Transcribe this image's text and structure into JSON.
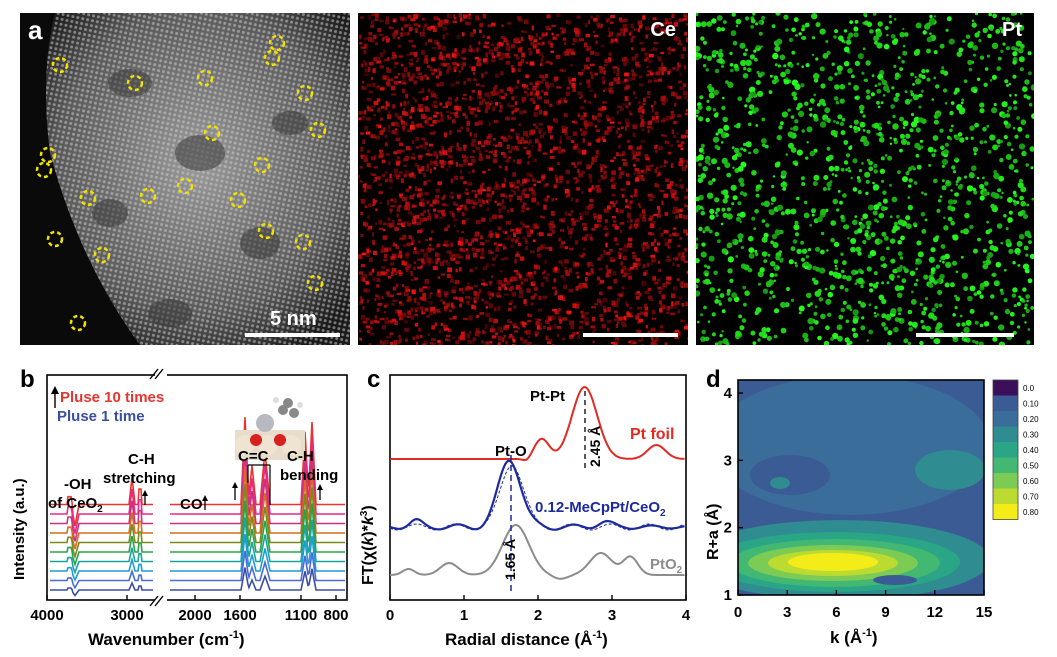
{
  "panel_a": {
    "letter": "a",
    "scale_label": "5 nm",
    "map_ce_label": "Ce",
    "map_pt_label": "Pt"
  },
  "panel_b": {
    "letter": "b",
    "legend": {
      "top": "Pluse 10 times",
      "bottom": "Pluse 1 time",
      "top_color": "#e8342d",
      "bottom_color": "#3a4ea1"
    },
    "ylabel": "Intensity (a.u.)",
    "xlabel": "Wavenumber (cm",
    "xlabel_sup": "-1",
    "xlabel_end": ")",
    "ticks": [
      "4000",
      "3000",
      "2000",
      "1600",
      "1100",
      "800"
    ],
    "annotations": {
      "oh_line1": "-OH",
      "oh_line2": "of CeO",
      "oh_sub": "2",
      "ch_stretch_line1": "C-H",
      "ch_stretch_line2": "stretching",
      "co": "CO",
      "cc": "C=C",
      "ch_bend_line1": "C-H",
      "ch_bend_line2": "bending"
    },
    "trace_colors": [
      "#e8342d",
      "#e62a8a",
      "#c8337f",
      "#d76b1f",
      "#7a8a1a",
      "#2aa24a",
      "#1ba39c",
      "#1e9bd7",
      "#4a6bd6",
      "#3a4ea1"
    ]
  },
  "panel_c": {
    "letter": "c",
    "ylabel_pre": "FT(χ(",
    "ylabel_k": "k",
    "ylabel_mid": ")*",
    "ylabel_k2": "k",
    "ylabel_sup": "3",
    "ylabel_end": ")",
    "xlabel": "Radial distance (Å",
    "xlabel_sup": "-1",
    "xlabel_end": ")",
    "x_ticks": [
      "0",
      "1",
      "2",
      "3",
      "4"
    ],
    "ptpt": "Pt-Pt",
    "pto": "Pt-O",
    "d245": "2.45 Å",
    "d165": "1.65 Å",
    "ptfoil": "Pt foil",
    "sample": "0.12-MeCpPt/CeO",
    "sample_sub": "2",
    "pto2": "PtO",
    "pto2_sub": "2",
    "colors": {
      "foil": "#e22a22",
      "sample": "#1d2a9e",
      "pto2": "#8c8c8c"
    }
  },
  "panel_d": {
    "letter": "d",
    "ylabel": "R+a (Å)",
    "xlabel": "k (Å",
    "xlabel_sup": "-1",
    "xlabel_end": ")",
    "x_ticks": [
      "0",
      "3",
      "6",
      "9",
      "12",
      "15"
    ],
    "y_ticks": [
      "1",
      "2",
      "3",
      "4"
    ],
    "colorbar": [
      "0.0",
      "0.10",
      "0.20",
      "0.30",
      "0.40",
      "0.50",
      "0.60",
      "0.70",
      "0.80"
    ],
    "colorbar_colors": [
      "#3b0f5a",
      "#3b5b94",
      "#3a6d9a",
      "#2f8c90",
      "#2aa585",
      "#42b873",
      "#7ccb55",
      "#bcdb31",
      "#f4ec19"
    ]
  }
}
